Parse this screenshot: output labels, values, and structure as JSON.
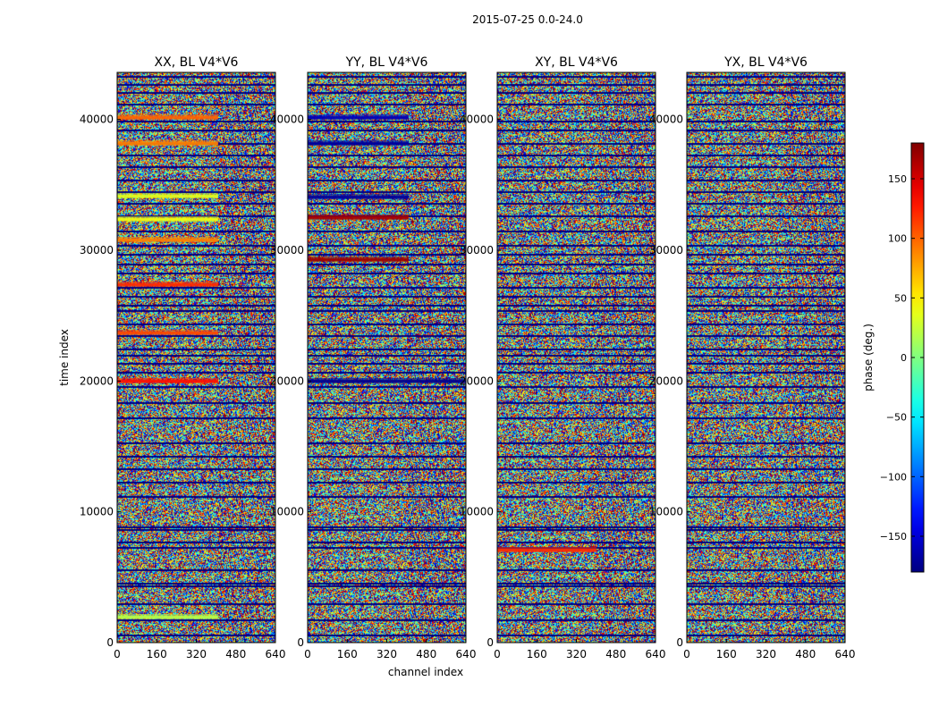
{
  "figure_title": "2015-07-25 0.0-24.0",
  "chart_data": {
    "type": "heatmap",
    "title": "2015-07-25 0.0-24.0",
    "xlabel": "channel index",
    "ylabel": "time index",
    "xlim": [
      0,
      640
    ],
    "ylim": [
      0,
      43600
    ],
    "x_ticks": [
      0,
      160,
      320,
      480,
      640
    ],
    "y_ticks": [
      0,
      10000,
      20000,
      30000,
      40000
    ],
    "colormap": "jet",
    "panels": [
      {
        "title": "XX, BL V4*V6",
        "strong_bands": [
          {
            "y": 20000,
            "phase": 130,
            "x_to": 410
          },
          {
            "y": 32400,
            "phase": 40,
            "x_to": 410
          },
          {
            "y": 34200,
            "phase": 35,
            "x_to": 410
          },
          {
            "y": 38200,
            "phase": 90,
            "x_to": 410
          },
          {
            "y": 40200,
            "phase": 100,
            "x_to": 410
          },
          {
            "y": 23700,
            "phase": 110,
            "x_to": 410
          },
          {
            "y": 27400,
            "phase": 120,
            "x_to": 410
          },
          {
            "y": 30800,
            "phase": 90,
            "x_to": 410
          },
          {
            "y": 2000,
            "phase": 20,
            "x_to": 410
          }
        ]
      },
      {
        "title": "YY, BL V4*V6",
        "strong_bands": [
          {
            "y": 20000,
            "phase": -175,
            "x_to": 640
          },
          {
            "y": 32500,
            "phase": 165,
            "x_to": 410
          },
          {
            "y": 38200,
            "phase": -170,
            "x_to": 410
          },
          {
            "y": 40200,
            "phase": -160,
            "x_to": 410
          },
          {
            "y": 34100,
            "phase": -170,
            "x_to": 410
          },
          {
            "y": 29300,
            "phase": 170,
            "x_to": 410
          }
        ]
      },
      {
        "title": "XY, BL V4*V6",
        "strong_bands": [
          {
            "y": 7100,
            "phase": 120,
            "x_to": 400
          }
        ]
      },
      {
        "title": "YX, BL V4*V6",
        "strong_bands": []
      }
    ],
    "dark_rows": [
      600,
      1800,
      3000,
      4400,
      4600,
      5600,
      7300,
      7700,
      8700,
      8900,
      11200,
      12300,
      13300,
      14300,
      15300,
      17200,
      18400,
      19600,
      20700,
      21400,
      22000,
      22500,
      23500,
      24400,
      25400,
      25800,
      26500,
      27200,
      28300,
      29000,
      29700,
      30400,
      31500,
      32700,
      33600,
      34500,
      35400,
      36400,
      37300,
      38200,
      39200,
      39900,
      41200,
      42100,
      42700,
      43300
    ],
    "colorbar": {
      "label": "phase (deg.)",
      "range": [
        -180,
        180
      ],
      "ticks": [
        -150,
        -100,
        -50,
        0,
        50,
        100,
        150
      ],
      "tick_labels": [
        "−150",
        "−100",
        "−50",
        "0",
        "50",
        "100",
        "150"
      ]
    },
    "grid": false,
    "legend": "none"
  }
}
